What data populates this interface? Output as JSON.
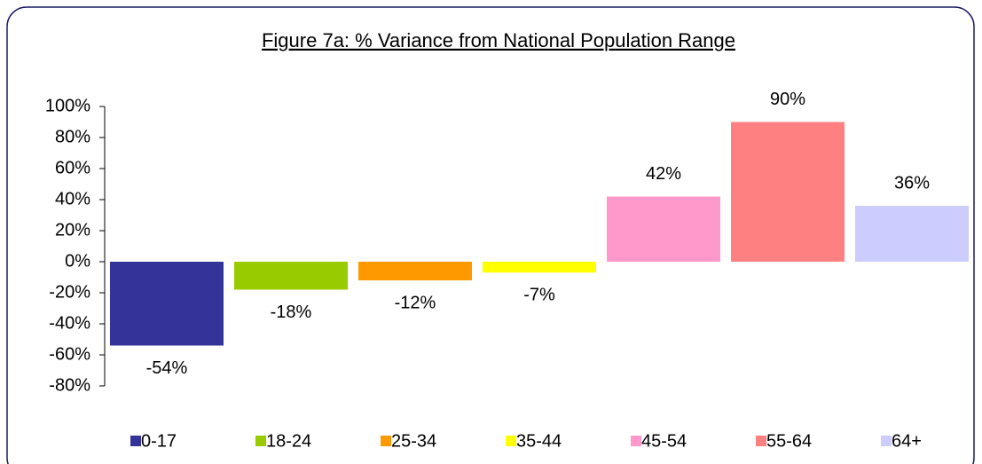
{
  "chart_data": {
    "type": "bar",
    "title": "Figure 7a: % Variance from National Population Range",
    "categories": [
      null
    ],
    "series": [
      {
        "name": "0-17",
        "color": "#333399",
        "values": [
          -54
        ],
        "value_labels": [
          "-54%"
        ]
      },
      {
        "name": "18-24",
        "color": "#99cc00",
        "values": [
          -18
        ],
        "value_labels": [
          "-18%"
        ]
      },
      {
        "name": "25-34",
        "color": "#ff9900",
        "values": [
          -12
        ],
        "value_labels": [
          "-12%"
        ]
      },
      {
        "name": "35-44",
        "color": "#ffff00",
        "values": [
          -7
        ],
        "value_labels": [
          "-7%"
        ]
      },
      {
        "name": "45-54",
        "color": "#ff99cc",
        "values": [
          42
        ],
        "value_labels": [
          "42%"
        ]
      },
      {
        "name": "55-64",
        "color": "#ff8080",
        "values": [
          90
        ],
        "value_labels": [
          "90%"
        ]
      },
      {
        "name": "64+",
        "color": "#ccccff",
        "values": [
          36
        ],
        "value_labels": [
          "36%"
        ]
      }
    ],
    "ylim": [
      -80,
      100
    ],
    "yticks": [
      {
        "value": -80,
        "label": "-80%"
      },
      {
        "value": -60,
        "label": "-60%"
      },
      {
        "value": -40,
        "label": "-40%"
      },
      {
        "value": -20,
        "label": "-20%"
      },
      {
        "value": 0,
        "label": "0%"
      },
      {
        "value": 20,
        "label": "20%"
      },
      {
        "value": 40,
        "label": "40%"
      },
      {
        "value": 60,
        "label": "60%"
      },
      {
        "value": 80,
        "label": "80%"
      },
      {
        "value": 100,
        "label": "100%"
      }
    ],
    "legend": "bottom"
  }
}
